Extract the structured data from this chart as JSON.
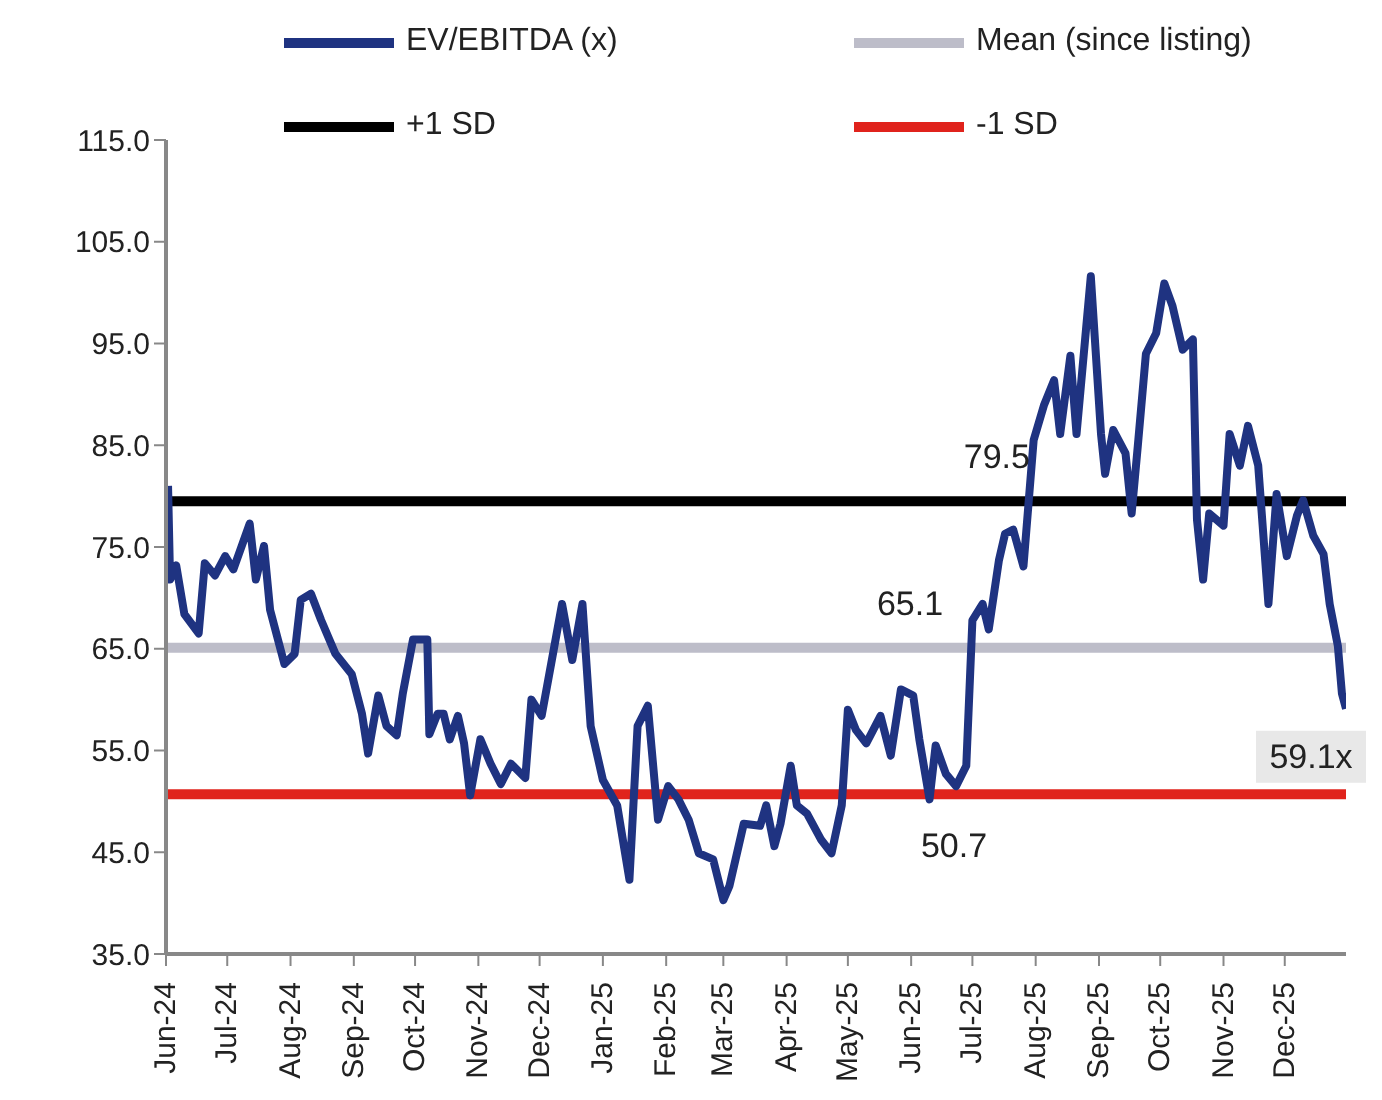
{
  "chart_data": {
    "type": "line",
    "legend": "top",
    "marker": "none",
    "line_style": "solid",
    "xlim": [
      "2024-06-01",
      "2025-12-31"
    ],
    "xticks": [
      {
        "value": "2024-06-01",
        "label": "Jun-24"
      },
      {
        "value": "2024-07-01",
        "label": "Jul-24"
      },
      {
        "value": "2024-08-01",
        "label": "Aug-24"
      },
      {
        "value": "2024-09-01",
        "label": "Sep-24"
      },
      {
        "value": "2024-10-01",
        "label": "Oct-24"
      },
      {
        "value": "2024-11-01",
        "label": "Nov-24"
      },
      {
        "value": "2024-12-01",
        "label": "Dec-24"
      },
      {
        "value": "2025-01-01",
        "label": "Jan-25"
      },
      {
        "value": "2025-02-01",
        "label": "Feb-25"
      },
      {
        "value": "2025-03-01",
        "label": "Mar-25"
      },
      {
        "value": "2025-04-01",
        "label": "Apr-25"
      },
      {
        "value": "2025-05-01",
        "label": "May-25"
      },
      {
        "value": "2025-06-01",
        "label": "Jun-25"
      },
      {
        "value": "2025-07-01",
        "label": "Jul-25"
      },
      {
        "value": "2025-08-01",
        "label": "Aug-25"
      },
      {
        "value": "2025-09-01",
        "label": "Sep-25"
      },
      {
        "value": "2025-10-01",
        "label": "Oct-25"
      },
      {
        "value": "2025-11-01",
        "label": "Nov-25"
      },
      {
        "value": "2025-12-01",
        "label": "Dec-25"
      }
    ],
    "ylim": [
      35,
      115
    ],
    "yticks": [
      {
        "value": 35,
        "label": "35.0"
      },
      {
        "value": 45,
        "label": "45.0"
      },
      {
        "value": 55,
        "label": "55.0"
      },
      {
        "value": 65,
        "label": "65.0"
      },
      {
        "value": 75,
        "label": "75.0"
      },
      {
        "value": 85,
        "label": "85.0"
      },
      {
        "value": 95,
        "label": "95.0"
      },
      {
        "value": 105,
        "label": "105.0"
      },
      {
        "value": 115,
        "label": "115.0"
      }
    ],
    "series": [
      {
        "name": "EV/EBITDA (x)",
        "color": "#1f3381",
        "x": [
          "2024-06-02",
          "2024-06-03",
          "2024-06-06",
          "2024-06-10",
          "2024-06-17",
          "2024-06-20",
          "2024-06-25",
          "2024-06-30",
          "2024-07-04",
          "2024-07-12",
          "2024-07-15",
          "2024-07-19",
          "2024-07-22",
          "2024-07-29",
          "2024-08-03",
          "2024-08-06",
          "2024-08-11",
          "2024-08-16",
          "2024-08-23",
          "2024-08-31",
          "2024-09-05",
          "2024-09-08",
          "2024-09-13",
          "2024-09-17",
          "2024-09-22",
          "2024-09-25",
          "2024-09-30",
          "2024-10-07",
          "2024-10-08",
          "2024-10-12",
          "2024-10-15",
          "2024-10-18",
          "2024-10-22",
          "2024-10-25",
          "2024-10-28",
          "2024-11-02",
          "2024-11-07",
          "2024-11-12",
          "2024-11-17",
          "2024-11-24",
          "2024-11-27",
          "2024-12-02",
          "2024-12-07",
          "2024-12-12",
          "2024-12-17",
          "2024-12-22",
          "2024-12-26",
          "2025-01-01",
          "2025-01-08",
          "2025-01-14",
          "2025-01-18",
          "2025-01-23",
          "2025-01-28",
          "2025-02-02",
          "2025-02-07",
          "2025-02-12",
          "2025-02-17",
          "2025-02-24",
          "2025-03-01",
          "2025-03-04",
          "2025-03-11",
          "2025-03-19",
          "2025-03-22",
          "2025-03-26",
          "2025-03-29",
          "2025-04-03",
          "2025-04-06",
          "2025-04-11",
          "2025-04-18",
          "2025-04-23",
          "2025-04-28",
          "2025-05-01",
          "2025-05-05",
          "2025-05-10",
          "2025-05-17",
          "2025-05-22",
          "2025-05-27",
          "2025-06-02",
          "2025-06-05",
          "2025-06-10",
          "2025-06-13",
          "2025-06-18",
          "2025-06-23",
          "2025-06-28",
          "2025-07-01",
          "2025-07-06",
          "2025-07-09",
          "2025-07-14",
          "2025-07-17",
          "2025-07-21",
          "2025-07-26",
          "2025-07-31",
          "2025-08-05",
          "2025-08-10",
          "2025-08-13",
          "2025-08-18",
          "2025-08-21",
          "2025-08-28",
          "2025-09-02",
          "2025-09-04",
          "2025-09-08",
          "2025-09-14",
          "2025-09-17",
          "2025-09-20",
          "2025-09-24",
          "2025-09-29",
          "2025-10-03",
          "2025-10-07",
          "2025-10-12",
          "2025-10-17",
          "2025-10-19",
          "2025-10-22",
          "2025-10-25",
          "2025-11-01",
          "2025-11-04",
          "2025-11-09",
          "2025-11-13",
          "2025-11-18",
          "2025-11-23",
          "2025-11-27",
          "2025-12-02",
          "2025-12-07",
          "2025-12-10",
          "2025-12-15",
          "2025-12-20",
          "2025-12-23",
          "2025-12-27",
          "2025-12-29",
          "2025-12-31"
        ],
        "values": [
          81.0,
          71.8,
          73.2,
          68.4,
          66.5,
          73.4,
          72.2,
          74.1,
          72.8,
          77.3,
          71.8,
          75.1,
          68.8,
          63.5,
          64.5,
          69.8,
          70.4,
          67.8,
          64.5,
          62.5,
          58.6,
          54.7,
          60.4,
          57.4,
          56.5,
          60.6,
          65.9,
          65.9,
          56.6,
          58.6,
          58.6,
          56.1,
          58.4,
          55.7,
          50.6,
          56.1,
          53.7,
          51.7,
          53.7,
          52.3,
          60.0,
          58.4,
          63.9,
          69.4,
          63.9,
          69.4,
          57.4,
          52.1,
          49.6,
          42.3,
          57.4,
          59.4,
          48.2,
          51.5,
          50.2,
          48.2,
          44.9,
          44.3,
          40.3,
          41.7,
          47.8,
          47.6,
          49.6,
          45.6,
          47.8,
          53.5,
          49.6,
          48.8,
          46.2,
          44.9,
          49.6,
          59.0,
          57.0,
          55.7,
          58.4,
          54.5,
          61.0,
          60.4,
          56.1,
          50.2,
          55.5,
          52.7,
          51.5,
          53.5,
          67.8,
          69.4,
          66.9,
          73.7,
          76.3,
          76.7,
          73.1,
          85.5,
          88.9,
          91.4,
          86.1,
          93.8,
          86.1,
          101.6,
          86.1,
          82.2,
          86.5,
          84.2,
          78.3,
          84.9,
          94.0,
          96.0,
          100.9,
          98.7,
          94.4,
          95.4,
          77.7,
          71.8,
          78.3,
          77.1,
          86.1,
          83.0,
          86.9,
          83.0,
          69.4,
          80.2,
          74.1,
          78.1,
          79.6,
          76.1,
          74.3,
          69.4,
          65.3,
          60.6,
          59.1
        ]
      }
    ],
    "ref_lines": [
      {
        "axis": "y",
        "value": 65.1,
        "label": "Mean (since listing)",
        "color": "#bdbdc9",
        "line_style": "solid"
      },
      {
        "axis": "y",
        "value": 79.5,
        "label": "+1 SD",
        "color": "#000000",
        "line_style": "solid"
      },
      {
        "axis": "y",
        "value": 50.7,
        "label": "-1 SD",
        "color": "#e0231c",
        "line_style": "solid"
      }
    ],
    "annotations": [
      {
        "text": "79.5",
        "x": "2025-07-13",
        "y": 79.5
      },
      {
        "text": "65.1",
        "x": "2025-06-22",
        "y": 65.1
      },
      {
        "text": "50.7",
        "x": "2025-06-22",
        "y": 50.7
      },
      {
        "text": "59.1x",
        "x": "2025-12-31",
        "y": 59.1
      }
    ]
  }
}
